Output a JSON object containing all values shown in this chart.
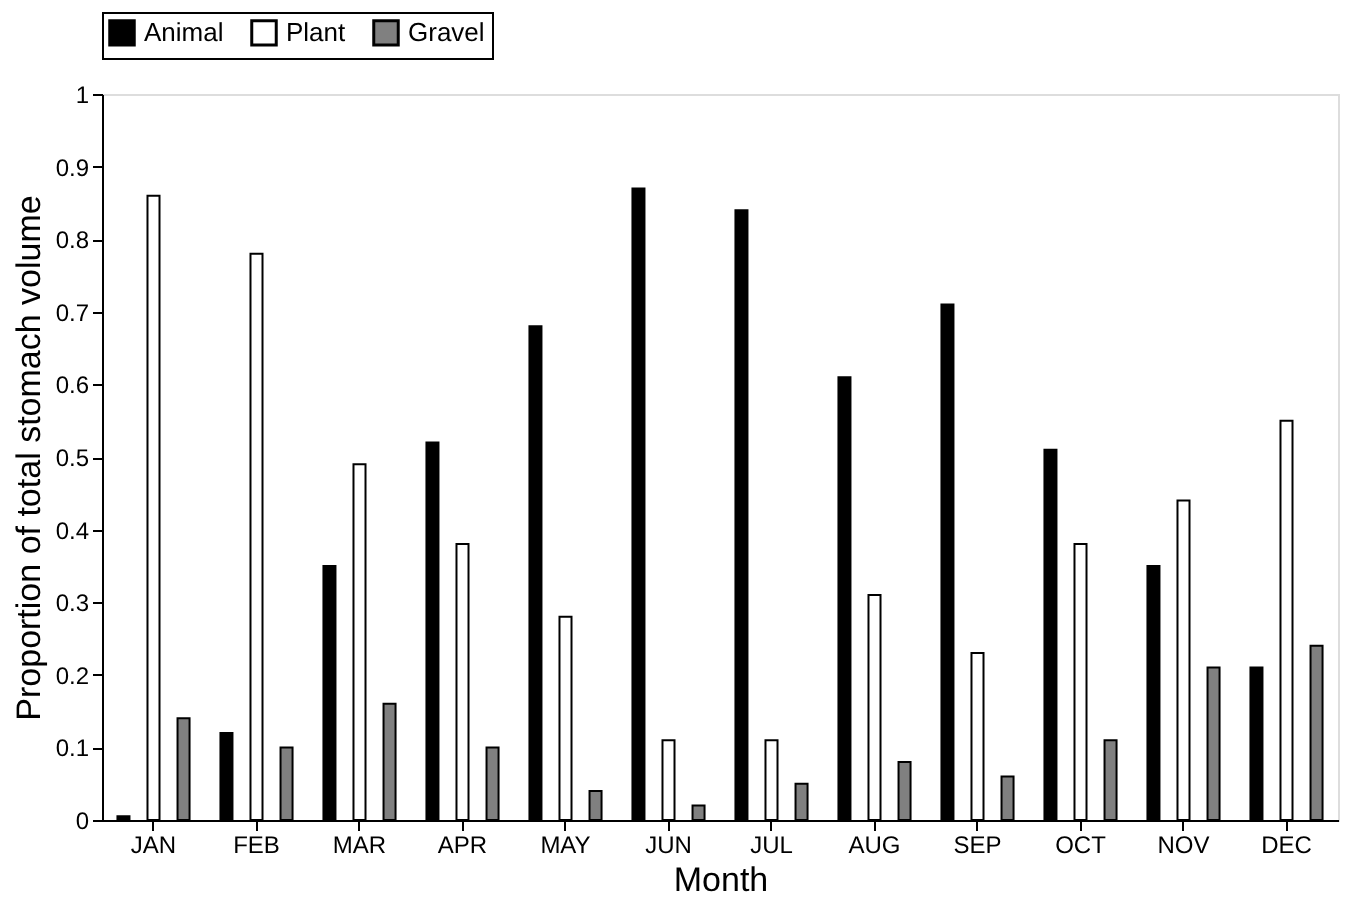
{
  "chart_data": {
    "type": "bar",
    "xlabel": "Month",
    "ylabel": "Proportion of total stomach volume",
    "categories": [
      "JAN",
      "FEB",
      "MAR",
      "APR",
      "MAY",
      "JUN",
      "JUL",
      "AUG",
      "SEP",
      "OCT",
      "NOV",
      "DEC"
    ],
    "series": [
      {
        "name": "Animal",
        "color": "#000000",
        "values": [
          0.005,
          0.12,
          0.35,
          0.52,
          0.68,
          0.87,
          0.84,
          0.61,
          0.71,
          0.51,
          0.35,
          0.21
        ]
      },
      {
        "name": "Plant",
        "color": "#ffffff",
        "values": [
          0.86,
          0.78,
          0.49,
          0.38,
          0.28,
          0.11,
          0.11,
          0.31,
          0.23,
          0.38,
          0.44,
          0.55
        ]
      },
      {
        "name": "Gravel",
        "color": "#808080",
        "values": [
          0.14,
          0.1,
          0.16,
          0.1,
          0.04,
          0.02,
          0.05,
          0.08,
          0.06,
          0.11,
          0.21,
          0.24
        ]
      }
    ],
    "ylim": [
      0,
      1
    ],
    "yticks": [
      0,
      0.1,
      0.2,
      0.3,
      0.4,
      0.5,
      0.6,
      0.7,
      0.8,
      0.9,
      1
    ],
    "grid": false,
    "legend": "top"
  }
}
